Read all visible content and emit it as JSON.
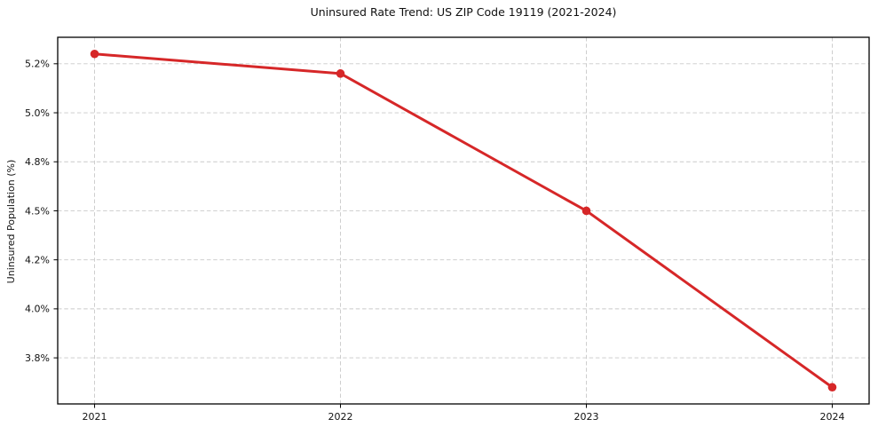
{
  "chart_data": {
    "type": "line",
    "title": "Uninsured Rate Trend: US ZIP Code 19119 (2021-2024)",
    "xlabel": "",
    "ylabel": "Uninsured Population (%)",
    "x": [
      2021,
      2022,
      2023,
      2024
    ],
    "series": [
      {
        "name": "Uninsured rate",
        "values": [
          5.3,
          5.2,
          4.5,
          3.6
        ],
        "color": "#d62728",
        "marker": "circle"
      }
    ],
    "xlim": [
      2020.85,
      2024.15
    ],
    "ylim": [
      3.515,
      5.385
    ],
    "xticks": [
      {
        "value": 2021,
        "label": "2021"
      },
      {
        "value": 2022,
        "label": "2022"
      },
      {
        "value": 2023,
        "label": "2023"
      },
      {
        "value": 2024,
        "label": "2024"
      }
    ],
    "yticks": [
      {
        "value": 3.75,
        "label": "3.8%"
      },
      {
        "value": 4.0,
        "label": "4.0%"
      },
      {
        "value": 4.25,
        "label": "4.2%"
      },
      {
        "value": 4.5,
        "label": "4.5%"
      },
      {
        "value": 4.75,
        "label": "4.8%"
      },
      {
        "value": 5.0,
        "label": "5.0%"
      },
      {
        "value": 5.25,
        "label": "5.2%"
      }
    ],
    "grid": true,
    "grid_style": "dashed",
    "legend_position": "none",
    "colors": {
      "line": "#d62728",
      "grid": "#c9c9c9",
      "axis_frame": "#000000",
      "background": "#ffffff",
      "text": "#111111"
    }
  }
}
